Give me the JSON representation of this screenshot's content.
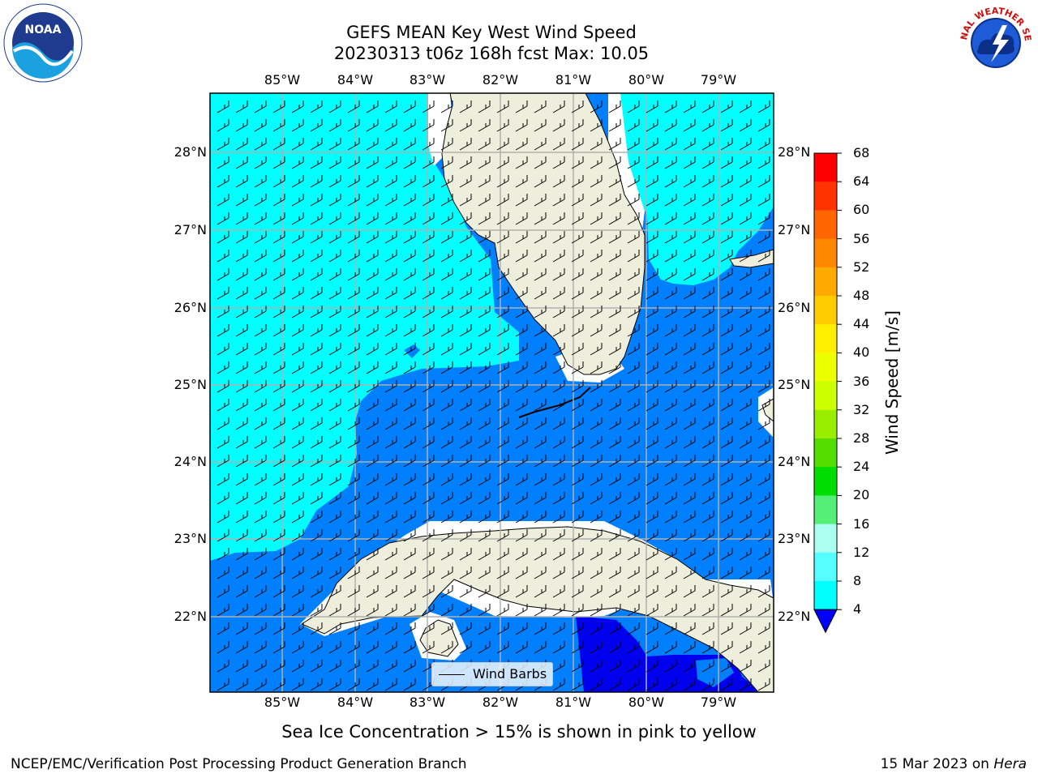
{
  "title": {
    "line1": "GEFS MEAN Key West Wind Speed",
    "line2": "20230313 t06z 168h fcst   Max: 10.05"
  },
  "longitude_labels": [
    "85°W",
    "84°W",
    "83°W",
    "82°W",
    "81°W",
    "80°W",
    "79°W"
  ],
  "latitude_labels": [
    "28°N",
    "27°N",
    "26°N",
    "25°N",
    "24°N",
    "23°N",
    "22°N"
  ],
  "colorbar": {
    "title": "Wind Speed [m/s]",
    "ticks": [
      "68",
      "64",
      "60",
      "56",
      "52",
      "48",
      "44",
      "40",
      "36",
      "32",
      "28",
      "24",
      "20",
      "16",
      "12",
      "8",
      "4"
    ],
    "colors": [
      "#ff0000",
      "#ff3300",
      "#ff6600",
      "#ff8800",
      "#ffaa00",
      "#ffcc00",
      "#ffee00",
      "#eeff00",
      "#ccff00",
      "#99ee00",
      "#55dd00",
      "#00dd00",
      "#55ee77",
      "#aaffee",
      "#55ffff",
      "#00ffff",
      "#0080ff"
    ],
    "extend_color": "#0000ff"
  },
  "map_colors": {
    "land": "#eeeedc",
    "light_wind": "#00ffff",
    "medium_wind": "#0080ff",
    "low_wind": "#0000ee",
    "gridline": "#b0b0b0"
  },
  "legend": {
    "label": "Wind Barbs"
  },
  "caption": "Sea Ice Concentration > 15% is shown in pink to yellow",
  "footer": {
    "left": "NCEP/EMC/Verification Post Processing Product Generation Branch",
    "right_date": "15 Mar 2023 on ",
    "right_system": "Hera"
  },
  "logos": {
    "noaa": "NOAA",
    "nws": "NATIONAL WEATHER SERVICE"
  },
  "chart_data": {
    "type": "contour_map",
    "title": "GEFS MEAN Key West Wind Speed",
    "subtitle": "20230313 t06z 168h fcst   Max: 10.05",
    "variable": "Wind Speed [m/s]",
    "max_value": 10.05,
    "lon_range": [
      -86.0,
      -78.25
    ],
    "lat_range": [
      21.05,
      28.75
    ],
    "lon_ticks": [
      -85,
      -84,
      -83,
      -82,
      -81,
      -80,
      -79
    ],
    "lat_ticks": [
      28,
      27,
      26,
      25,
      24,
      23,
      22
    ],
    "levels": [
      4,
      8,
      12,
      16,
      20,
      24,
      28,
      32,
      36,
      40,
      44,
      48,
      52,
      56,
      60,
      64,
      68
    ],
    "grid": true,
    "overlay": "wind barbs",
    "legend_placement": "lower-center"
  }
}
